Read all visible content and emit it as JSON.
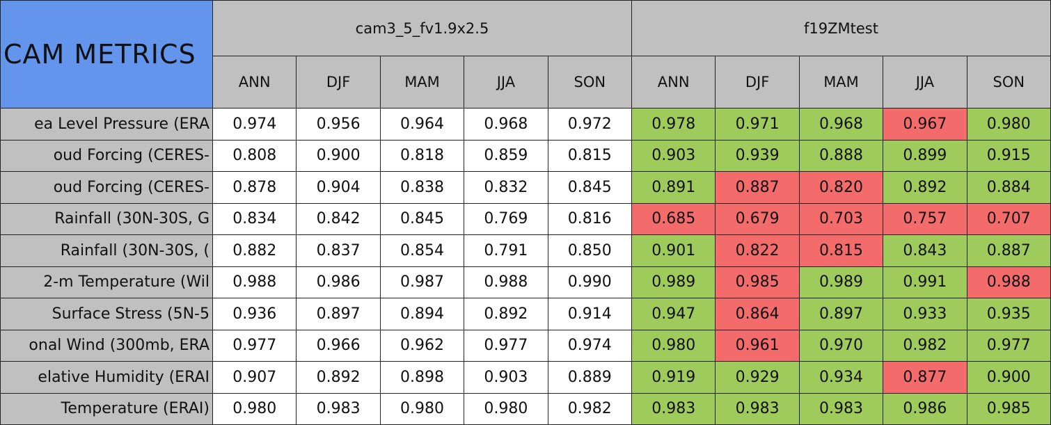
{
  "header": {
    "title": "CAM METRICS",
    "groups": [
      "cam3_5_fv1.9x2.5",
      "f19ZMtest"
    ],
    "seasons": [
      "ANN",
      "DJF",
      "MAM",
      "JJA",
      "SON"
    ]
  },
  "rows": [
    {
      "label": "ea Level Pressure (ERA",
      "values": [
        "0.974",
        "0.956",
        "0.964",
        "0.968",
        "0.972",
        "0.978",
        "0.971",
        "0.968",
        "0.967",
        "0.980"
      ],
      "colors": [
        "#ffffff",
        "#ffffff",
        "#ffffff",
        "#ffffff",
        "#ffffff",
        "#9fcb5c",
        "#9fcb5c",
        "#9fcb5c",
        "#f46b6b",
        "#9fcb5c"
      ]
    },
    {
      "label": "oud Forcing (CERES-",
      "values": [
        "0.808",
        "0.900",
        "0.818",
        "0.859",
        "0.815",
        "0.903",
        "0.939",
        "0.888",
        "0.899",
        "0.915"
      ],
      "colors": [
        "#ffffff",
        "#ffffff",
        "#ffffff",
        "#ffffff",
        "#ffffff",
        "#9fcb5c",
        "#9fcb5c",
        "#9fcb5c",
        "#9fcb5c",
        "#9fcb5c"
      ]
    },
    {
      "label": "oud Forcing (CERES-",
      "values": [
        "0.878",
        "0.904",
        "0.838",
        "0.832",
        "0.845",
        "0.891",
        "0.887",
        "0.820",
        "0.892",
        "0.884"
      ],
      "colors": [
        "#ffffff",
        "#ffffff",
        "#ffffff",
        "#ffffff",
        "#ffffff",
        "#9fcb5c",
        "#f46b6b",
        "#f46b6b",
        "#9fcb5c",
        "#9fcb5c"
      ]
    },
    {
      "label": "Rainfall (30N-30S, G",
      "values": [
        "0.834",
        "0.842",
        "0.845",
        "0.769",
        "0.816",
        "0.685",
        "0.679",
        "0.703",
        "0.757",
        "0.707"
      ],
      "colors": [
        "#ffffff",
        "#ffffff",
        "#ffffff",
        "#ffffff",
        "#ffffff",
        "#f46b6b",
        "#f46b6b",
        "#f46b6b",
        "#f46b6b",
        "#f46b6b"
      ]
    },
    {
      "label": "Rainfall (30N-30S, (",
      "values": [
        "0.882",
        "0.837",
        "0.854",
        "0.791",
        "0.850",
        "0.901",
        "0.822",
        "0.815",
        "0.843",
        "0.887"
      ],
      "colors": [
        "#ffffff",
        "#ffffff",
        "#ffffff",
        "#ffffff",
        "#ffffff",
        "#9fcb5c",
        "#f46b6b",
        "#f46b6b",
        "#9fcb5c",
        "#9fcb5c"
      ]
    },
    {
      "label": "2-m Temperature (Wil",
      "values": [
        "0.988",
        "0.986",
        "0.987",
        "0.988",
        "0.990",
        "0.989",
        "0.985",
        "0.989",
        "0.991",
        "0.988"
      ],
      "colors": [
        "#ffffff",
        "#ffffff",
        "#ffffff",
        "#ffffff",
        "#ffffff",
        "#9fcb5c",
        "#f46b6b",
        "#9fcb5c",
        "#9fcb5c",
        "#f46b6b"
      ]
    },
    {
      "label": "Surface Stress (5N-5",
      "values": [
        "0.936",
        "0.897",
        "0.894",
        "0.892",
        "0.914",
        "0.947",
        "0.864",
        "0.897",
        "0.933",
        "0.935"
      ],
      "colors": [
        "#ffffff",
        "#ffffff",
        "#ffffff",
        "#ffffff",
        "#ffffff",
        "#9fcb5c",
        "#f46b6b",
        "#9fcb5c",
        "#9fcb5c",
        "#9fcb5c"
      ]
    },
    {
      "label": "onal Wind (300mb, ERA",
      "values": [
        "0.977",
        "0.966",
        "0.962",
        "0.977",
        "0.974",
        "0.980",
        "0.961",
        "0.970",
        "0.982",
        "0.977"
      ],
      "colors": [
        "#ffffff",
        "#ffffff",
        "#ffffff",
        "#ffffff",
        "#ffffff",
        "#9fcb5c",
        "#f46b6b",
        "#9fcb5c",
        "#9fcb5c",
        "#9fcb5c"
      ]
    },
    {
      "label": "elative Humidity (ERAI",
      "values": [
        "0.907",
        "0.892",
        "0.898",
        "0.903",
        "0.889",
        "0.919",
        "0.929",
        "0.934",
        "0.877",
        "0.900"
      ],
      "colors": [
        "#ffffff",
        "#ffffff",
        "#ffffff",
        "#ffffff",
        "#ffffff",
        "#9fcb5c",
        "#9fcb5c",
        "#9fcb5c",
        "#f46b6b",
        "#9fcb5c"
      ]
    },
    {
      "label": "Temperature (ERAI)",
      "values": [
        "0.980",
        "0.983",
        "0.980",
        "0.980",
        "0.982",
        "0.983",
        "0.983",
        "0.983",
        "0.986",
        "0.985"
      ],
      "colors": [
        "#ffffff",
        "#ffffff",
        "#ffffff",
        "#ffffff",
        "#ffffff",
        "#9fcb5c",
        "#9fcb5c",
        "#9fcb5c",
        "#9fcb5c",
        "#9fcb5c"
      ]
    }
  ]
}
